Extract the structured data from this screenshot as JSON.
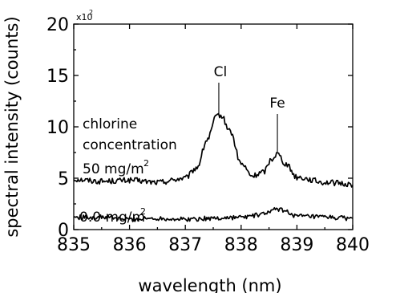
{
  "chart_data": {
    "type": "line",
    "xlabel": "wavelength (nm)",
    "ylabel": "spectral intensity (counts)",
    "y_multiplier": "x10",
    "y_multiplier_exp": "2",
    "xlim": [
      835,
      840
    ],
    "ylim": [
      0,
      20
    ],
    "xticks": [
      835,
      836,
      837,
      838,
      839,
      840
    ],
    "yticks": [
      0,
      5,
      10,
      15,
      20
    ],
    "grid": false,
    "series": [
      {
        "name": "50 mg/m2",
        "x": [
          835.0,
          835.5,
          836.0,
          836.5,
          837.0,
          837.2,
          837.4,
          837.55,
          837.6,
          837.65,
          837.8,
          838.0,
          838.2,
          838.4,
          838.55,
          838.65,
          838.8,
          839.0,
          839.5,
          840.0
        ],
        "y": [
          4.9,
          4.7,
          4.8,
          4.6,
          5.0,
          6.0,
          8.8,
          10.9,
          11.2,
          11.0,
          9.6,
          6.4,
          5.2,
          5.6,
          6.9,
          7.4,
          6.4,
          5.1,
          4.6,
          4.4
        ]
      },
      {
        "name": "0.0 mg/m2",
        "x": [
          835.0,
          835.5,
          836.0,
          836.5,
          837.0,
          837.5,
          838.0,
          838.3,
          838.5,
          838.65,
          838.8,
          839.0,
          839.5,
          840.0
        ],
        "y": [
          1.2,
          1.2,
          1.0,
          1.1,
          1.0,
          1.1,
          1.2,
          1.4,
          1.7,
          2.0,
          1.8,
          1.3,
          1.2,
          1.1
        ]
      }
    ],
    "annotations": {
      "cl_label": "Cl",
      "cl_x": 837.6,
      "fe_label": "Fe",
      "fe_x": 838.65,
      "chlorine_line1": "chlorine",
      "chlorine_line2": "concentration",
      "label_50": "50 mg/m",
      "label_0": "0.0 mg/m",
      "label_sup": "2"
    }
  }
}
